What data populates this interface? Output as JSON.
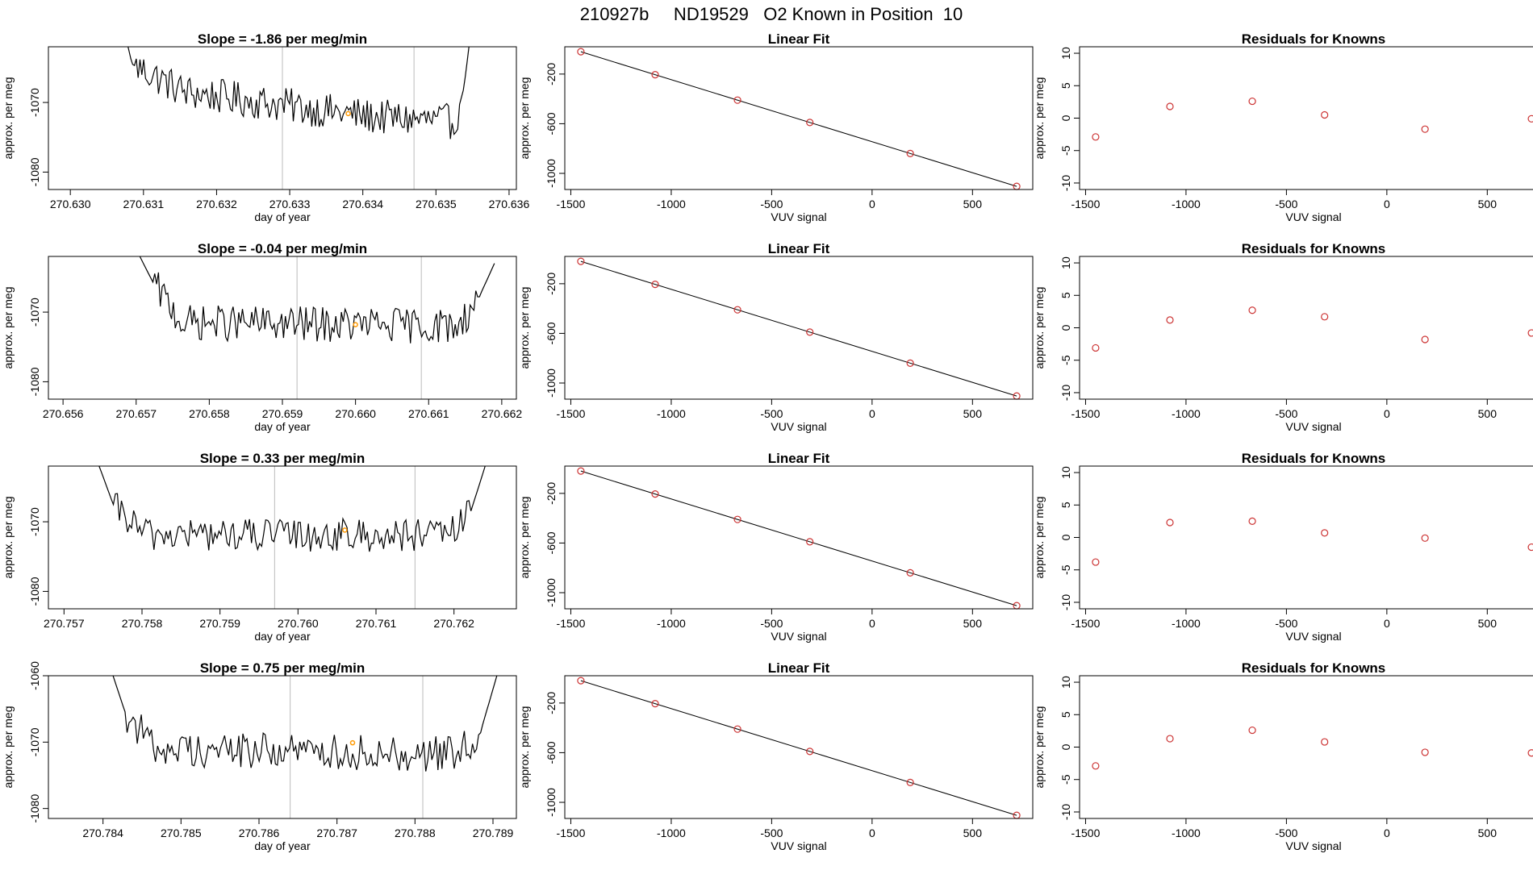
{
  "page_title": "210927b     ND19529   O2 Known in Position  10",
  "colors": {
    "line": "#000000",
    "raw_marker": "#ff9900",
    "fit_point": "#cc3333",
    "vline": "#bbbbbb",
    "axis": "#000000"
  },
  "chart_data": [
    {
      "type": "line",
      "panel": "raw",
      "row": 1,
      "title": "Slope =  -1.86  per meg/min",
      "xlabel": "day of year",
      "ylabel": "approx. per meg",
      "xlim": [
        270.6297,
        270.6361
      ],
      "ylim": [
        -1082.5,
        -1062
      ],
      "xticks": [
        270.63,
        270.631,
        270.632,
        270.633,
        270.634,
        270.635,
        270.636
      ],
      "xtick_labels": [
        "270.630",
        "270.631",
        "270.632",
        "270.633",
        "270.634",
        "270.635",
        "270.636"
      ],
      "yticks": [
        -1080,
        -1070
      ],
      "ytick_labels": [
        "-1080",
        "-1070"
      ],
      "vlines": [
        270.6329,
        270.6347
      ],
      "x_start": 270.6307,
      "x_end": 270.6355,
      "base": -1072.3,
      "noise": 1.6,
      "marker": {
        "x": 270.6338,
        "y": -1071.6
      },
      "shape": [
        [
          0,
          -1058
        ],
        [
          0.03,
          -1064.5
        ],
        [
          0.18,
          -1068.5
        ],
        [
          0.45,
          -1070.3
        ],
        [
          0.7,
          -1072
        ],
        [
          0.95,
          -1072.8
        ],
        [
          0.975,
          -1068
        ],
        [
          1,
          -1058
        ]
      ]
    },
    {
      "type": "line",
      "panel": "fit",
      "row": 1,
      "title": "Linear Fit",
      "xlabel": "VUV signal",
      "ylabel": "approx. per meg",
      "xlim": [
        -1530,
        800
      ],
      "ylim": [
        -1130,
        20
      ],
      "xticks": [
        -1500,
        -1000,
        -500,
        0,
        500
      ],
      "xtick_labels": [
        "-1500",
        "-1000",
        "-500",
        "0",
        "500"
      ],
      "yticks": [
        -1000,
        -600,
        -200
      ],
      "ytick_labels": [
        "-1000",
        "-600",
        "-200"
      ],
      "x": [
        -1450,
        -1080,
        -670,
        -310,
        190,
        720
      ],
      "y": [
        -20,
        -205,
        -410,
        -590,
        -840,
        -1105
      ],
      "fit": {
        "x": [
          -1450,
          720
        ],
        "y": [
          -20,
          -1105
        ]
      }
    },
    {
      "type": "scatter",
      "panel": "residuals",
      "row": 1,
      "title": "Residuals for Knowns",
      "xlabel": "VUV signal",
      "ylabel": "approx. per meg",
      "xlim": [
        -1530,
        800
      ],
      "ylim": [
        -11,
        11
      ],
      "xticks": [
        -1500,
        -1000,
        -500,
        0,
        500
      ],
      "xtick_labels": [
        "-1500",
        "-1000",
        "-500",
        "0",
        "500"
      ],
      "yticks": [
        -10,
        -5,
        0,
        5,
        10
      ],
      "ytick_labels": [
        "-10",
        "-5",
        "0",
        "5",
        "10"
      ],
      "x": [
        -1450,
        -1080,
        -670,
        -310,
        190,
        720
      ],
      "y": [
        -2.9,
        1.8,
        2.6,
        0.5,
        -1.7,
        -0.1
      ]
    },
    {
      "type": "line",
      "panel": "raw",
      "row": 2,
      "title": "Slope =  -0.04  per meg/min",
      "xlabel": "day of year",
      "ylabel": "approx. per meg",
      "xlim": [
        270.6558,
        270.6622
      ],
      "ylim": [
        -1082.5,
        -1062
      ],
      "xticks": [
        270.656,
        270.657,
        270.658,
        270.659,
        270.66,
        270.661,
        270.662
      ],
      "xtick_labels": [
        "270.656",
        "270.657",
        "270.658",
        "270.659",
        "270.660",
        "270.661",
        "270.662"
      ],
      "yticks": [
        -1080,
        -1070
      ],
      "ytick_labels": [
        "-1080",
        "-1070"
      ],
      "vlines": [
        270.6592,
        270.6609
      ],
      "x_start": 270.65705,
      "x_end": 270.6619,
      "base": -1072,
      "noise": 1.6,
      "marker": {
        "x": 270.66,
        "y": -1071.8
      },
      "shape": [
        [
          0,
          -1062
        ],
        [
          0.04,
          -1066
        ],
        [
          0.12,
          -1071.5
        ],
        [
          0.9,
          -1072
        ],
        [
          0.96,
          -1067.5
        ],
        [
          1,
          -1063
        ]
      ]
    },
    {
      "type": "line",
      "panel": "fit",
      "row": 2,
      "title": "Linear Fit",
      "xlabel": "VUV signal",
      "ylabel": "approx. per meg",
      "xlim": [
        -1530,
        800
      ],
      "ylim": [
        -1130,
        20
      ],
      "xticks": [
        -1500,
        -1000,
        -500,
        0,
        500
      ],
      "xtick_labels": [
        "-1500",
        "-1000",
        "-500",
        "0",
        "500"
      ],
      "yticks": [
        -1000,
        -600,
        -200
      ],
      "ytick_labels": [
        "-1000",
        "-600",
        "-200"
      ],
      "x": [
        -1450,
        -1080,
        -670,
        -310,
        190,
        720
      ],
      "y": [
        -20,
        -205,
        -410,
        -590,
        -840,
        -1105
      ],
      "fit": {
        "x": [
          -1450,
          720
        ],
        "y": [
          -20,
          -1105
        ]
      }
    },
    {
      "type": "scatter",
      "panel": "residuals",
      "row": 2,
      "title": "Residuals for Knowns",
      "xlabel": "VUV signal",
      "ylabel": "approx. per meg",
      "xlim": [
        -1530,
        800
      ],
      "ylim": [
        -11,
        11
      ],
      "xticks": [
        -1500,
        -1000,
        -500,
        0,
        500
      ],
      "xtick_labels": [
        "-1500",
        "-1000",
        "-500",
        "0",
        "500"
      ],
      "yticks": [
        -10,
        -5,
        0,
        5,
        10
      ],
      "ytick_labels": [
        "-10",
        "-5",
        "0",
        "5",
        "10"
      ],
      "x": [
        -1450,
        -1080,
        -670,
        -310,
        190,
        720
      ],
      "y": [
        -3.1,
        1.2,
        2.7,
        1.7,
        -1.8,
        -0.8
      ]
    },
    {
      "type": "line",
      "panel": "raw",
      "row": 3,
      "title": "Slope =  0.33  per meg/min",
      "xlabel": "day of year",
      "ylabel": "approx. per meg",
      "xlim": [
        270.7568,
        270.7628
      ],
      "ylim": [
        -1082.5,
        -1062
      ],
      "xticks": [
        270.757,
        270.758,
        270.759,
        270.76,
        270.761,
        270.762
      ],
      "xtick_labels": [
        "270.757",
        "270.758",
        "270.759",
        "270.760",
        "270.761",
        "270.762"
      ],
      "yticks": [
        -1080,
        -1070
      ],
      "ytick_labels": [
        "-1080",
        "-1070"
      ],
      "vlines": [
        270.7597,
        270.7615
      ],
      "x_start": 270.75745,
      "x_end": 270.7624,
      "base": -1072,
      "noise": 1.5,
      "marker": {
        "x": 270.7606,
        "y": -1071.2
      },
      "shape": [
        [
          0,
          -1062
        ],
        [
          0.04,
          -1068
        ],
        [
          0.12,
          -1071.8
        ],
        [
          0.9,
          -1072
        ],
        [
          0.96,
          -1069
        ],
        [
          1,
          -1062
        ]
      ]
    },
    {
      "type": "line",
      "panel": "fit",
      "row": 3,
      "title": "Linear Fit",
      "xlabel": "VUV signal",
      "ylabel": "approx. per meg",
      "xlim": [
        -1530,
        800
      ],
      "ylim": [
        -1130,
        20
      ],
      "xticks": [
        -1500,
        -1000,
        -500,
        0,
        500
      ],
      "xtick_labels": [
        "-1500",
        "-1000",
        "-500",
        "0",
        "500"
      ],
      "yticks": [
        -1000,
        -600,
        -200
      ],
      "ytick_labels": [
        "-1000",
        "-600",
        "-200"
      ],
      "x": [
        -1450,
        -1080,
        -670,
        -310,
        190,
        720
      ],
      "y": [
        -20,
        -205,
        -410,
        -590,
        -840,
        -1105
      ],
      "fit": {
        "x": [
          -1450,
          720
        ],
        "y": [
          -20,
          -1105
        ]
      }
    },
    {
      "type": "scatter",
      "panel": "residuals",
      "row": 3,
      "title": "Residuals for Knowns",
      "xlabel": "VUV signal",
      "ylabel": "approx. per meg",
      "xlim": [
        -1530,
        800
      ],
      "ylim": [
        -11,
        11
      ],
      "xticks": [
        -1500,
        -1000,
        -500,
        0,
        500
      ],
      "xtick_labels": [
        "-1500",
        "-1000",
        "-500",
        "0",
        "500"
      ],
      "yticks": [
        -10,
        -5,
        0,
        5,
        10
      ],
      "ytick_labels": [
        "-10",
        "-5",
        "0",
        "5",
        "10"
      ],
      "x": [
        -1450,
        -1080,
        -670,
        -310,
        190,
        720
      ],
      "y": [
        -3.8,
        2.3,
        2.5,
        0.7,
        -0.1,
        -1.5
      ]
    },
    {
      "type": "line",
      "panel": "raw",
      "row": 4,
      "title": "Slope =  0.75  per meg/min",
      "xlabel": "day of year",
      "ylabel": "approx. per meg",
      "xlim": [
        270.7833,
        270.7893
      ],
      "ylim": [
        -1081.5,
        -1060
      ],
      "xticks": [
        270.784,
        270.785,
        270.786,
        270.787,
        270.788,
        270.789
      ],
      "xtick_labels": [
        "270.784",
        "270.785",
        "270.786",
        "270.787",
        "270.788",
        "270.789"
      ],
      "yticks": [
        -1080,
        -1070,
        -1060
      ],
      "ytick_labels": [
        "-1080",
        "-1070",
        "-1060"
      ],
      "vlines": [
        270.7864,
        270.7881
      ],
      "x_start": 270.7841,
      "x_end": 270.78905,
      "base": -1071.5,
      "noise": 1.7,
      "marker": {
        "x": 270.7872,
        "y": -1070.1
      },
      "shape": [
        [
          0,
          -1059
        ],
        [
          0.04,
          -1066
        ],
        [
          0.12,
          -1071
        ],
        [
          0.9,
          -1071.8
        ],
        [
          0.96,
          -1068
        ],
        [
          1,
          -1060
        ]
      ]
    },
    {
      "type": "line",
      "panel": "fit",
      "row": 4,
      "title": "Linear Fit",
      "xlabel": "VUV signal",
      "ylabel": "approx. per meg",
      "xlim": [
        -1530,
        800
      ],
      "ylim": [
        -1130,
        20
      ],
      "xticks": [
        -1500,
        -1000,
        -500,
        0,
        500
      ],
      "xtick_labels": [
        "-1500",
        "-1000",
        "-500",
        "0",
        "500"
      ],
      "yticks": [
        -1000,
        -600,
        -200
      ],
      "ytick_labels": [
        "-1000",
        "-600",
        "-200"
      ],
      "x": [
        -1450,
        -1080,
        -670,
        -310,
        190,
        720
      ],
      "y": [
        -20,
        -205,
        -410,
        -590,
        -840,
        -1105
      ],
      "fit": {
        "x": [
          -1450,
          720
        ],
        "y": [
          -20,
          -1105
        ]
      }
    },
    {
      "type": "scatter",
      "panel": "residuals",
      "row": 4,
      "title": "Residuals for Knowns",
      "xlabel": "VUV signal",
      "ylabel": "approx. per meg",
      "xlim": [
        -1530,
        800
      ],
      "ylim": [
        -11,
        11
      ],
      "xticks": [
        -1500,
        -1000,
        -500,
        0,
        500
      ],
      "xtick_labels": [
        "-1500",
        "-1000",
        "-500",
        "0",
        "500"
      ],
      "yticks": [
        -10,
        -5,
        0,
        5,
        10
      ],
      "ytick_labels": [
        "-10",
        "-5",
        "0",
        "5",
        "10"
      ],
      "x": [
        -1450,
        -1080,
        -670,
        -310,
        190,
        720
      ],
      "y": [
        -2.9,
        1.3,
        2.6,
        0.8,
        -0.8,
        -0.9
      ]
    }
  ]
}
